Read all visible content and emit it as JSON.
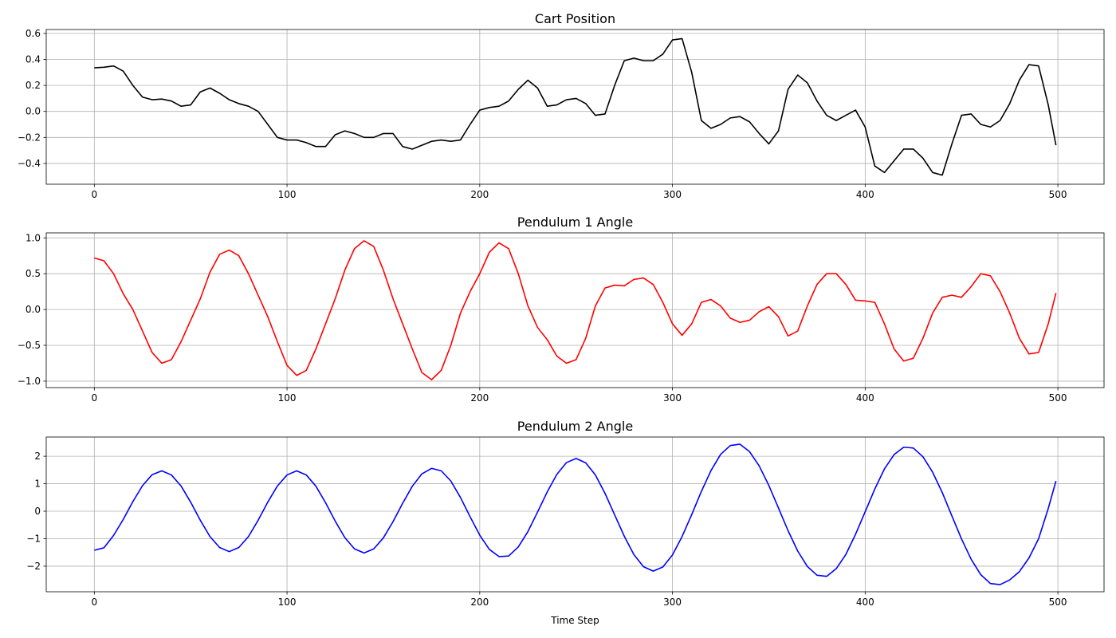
{
  "chart_data": [
    {
      "type": "line",
      "title": "Cart Position",
      "color": "#000000",
      "grid": true,
      "xlim": [
        -24.95,
        523.95
      ],
      "xticks": [
        0,
        100,
        200,
        300,
        400,
        500
      ],
      "ylim": [
        -0.56,
        0.63
      ],
      "yticks": [
        {
          "value": -0.4,
          "label": "−0.4"
        },
        {
          "value": -0.2,
          "label": "−0.2"
        },
        {
          "value": 0,
          "label": "0.0"
        },
        0.2,
        0.4,
        0.6
      ],
      "x": [
        0,
        5,
        10,
        15,
        20,
        25,
        30,
        35,
        40,
        45,
        50,
        55,
        60,
        65,
        70,
        75,
        80,
        85,
        90,
        95,
        100,
        105,
        110,
        115,
        120,
        125,
        130,
        135,
        140,
        145,
        150,
        155,
        160,
        165,
        170,
        175,
        180,
        185,
        190,
        195,
        200,
        205,
        210,
        215,
        220,
        225,
        230,
        235,
        240,
        245,
        250,
        255,
        260,
        265,
        270,
        275,
        280,
        285,
        290,
        295,
        300,
        305,
        310,
        315,
        320,
        325,
        330,
        335,
        340,
        345,
        350,
        355,
        360,
        365,
        370,
        375,
        380,
        385,
        390,
        395,
        400,
        405,
        410,
        415,
        420,
        425,
        430,
        435,
        440,
        445,
        450,
        455,
        460,
        465,
        470,
        475,
        480,
        485,
        490,
        495,
        499
      ],
      "y": [
        0.335,
        0.34,
        0.35,
        0.31,
        0.2,
        0.11,
        0.09,
        0.095,
        0.08,
        0.04,
        0.05,
        0.15,
        0.18,
        0.14,
        0.09,
        0.06,
        0.04,
        0,
        -0.1,
        -0.2,
        -0.22,
        -0.22,
        -0.24,
        -0.27,
        -0.27,
        -0.18,
        -0.15,
        -0.17,
        -0.2,
        -0.2,
        -0.17,
        -0.17,
        -0.27,
        -0.29,
        -0.26,
        -0.23,
        -0.22,
        -0.23,
        -0.22,
        -0.1,
        0.01,
        0.03,
        0.04,
        0.08,
        0.17,
        0.24,
        0.18,
        0.04,
        0.05,
        0.09,
        0.1,
        0.06,
        -0.03,
        -0.02,
        0.2,
        0.39,
        0.41,
        0.39,
        0.39,
        0.44,
        0.55,
        0.56,
        0.3,
        -0.07,
        -0.13,
        -0.1,
        -0.05,
        -0.04,
        -0.08,
        -0.17,
        -0.25,
        -0.15,
        0.17,
        0.28,
        0.22,
        0.08,
        -0.03,
        -0.07,
        -0.03,
        0.01,
        -0.12,
        -0.42,
        -0.47,
        -0.38,
        -0.29,
        -0.29,
        -0.36,
        -0.47,
        -0.49,
        -0.25,
        -0.03,
        -0.02,
        -0.1,
        -0.12,
        -0.07,
        0.06,
        0.24,
        0.36,
        0.35,
        0.05,
        -0.26
      ]
    },
    {
      "type": "line",
      "title": "Pendulum 1 Angle",
      "color": "#ff0000",
      "grid": true,
      "xlim": [
        -24.95,
        523.95
      ],
      "xticks": [
        0,
        100,
        200,
        300,
        400,
        500
      ],
      "ylim": [
        -1.09,
        1.07
      ],
      "yticks": [
        {
          "value": -1,
          "label": "−1.0"
        },
        {
          "value": -0.5,
          "label": "−0.5"
        },
        {
          "value": 0,
          "label": "0.0"
        },
        0.5,
        {
          "value": 1,
          "label": "1.0"
        }
      ],
      "x": [
        0,
        5,
        10,
        15,
        20,
        25,
        30,
        35,
        40,
        45,
        50,
        55,
        60,
        65,
        70,
        75,
        80,
        85,
        90,
        95,
        100,
        105,
        110,
        115,
        120,
        125,
        130,
        135,
        140,
        145,
        150,
        155,
        160,
        165,
        170,
        175,
        180,
        185,
        190,
        195,
        200,
        205,
        210,
        215,
        220,
        225,
        230,
        235,
        240,
        245,
        250,
        255,
        260,
        265,
        270,
        275,
        280,
        285,
        290,
        295,
        300,
        305,
        310,
        315,
        320,
        325,
        330,
        335,
        340,
        345,
        350,
        355,
        360,
        365,
        370,
        375,
        380,
        385,
        390,
        395,
        400,
        405,
        410,
        415,
        420,
        425,
        430,
        435,
        440,
        445,
        450,
        455,
        460,
        465,
        470,
        475,
        480,
        485,
        490,
        495,
        499
      ],
      "y": [
        0.72,
        0.68,
        0.5,
        0.22,
        0,
        -0.3,
        -0.6,
        -0.75,
        -0.7,
        -0.45,
        -0.15,
        0.15,
        0.52,
        0.77,
        0.83,
        0.75,
        0.5,
        0.2,
        -0.1,
        -0.45,
        -0.78,
        -0.92,
        -0.85,
        -0.55,
        -0.2,
        0.15,
        0.55,
        0.85,
        0.96,
        0.88,
        0.55,
        0.15,
        -0.2,
        -0.55,
        -0.88,
        -0.98,
        -0.85,
        -0.5,
        -0.05,
        0.25,
        0.5,
        0.8,
        0.93,
        0.85,
        0.5,
        0.05,
        -0.25,
        -0.42,
        -0.65,
        -0.75,
        -0.7,
        -0.4,
        0.05,
        0.3,
        0.34,
        0.33,
        0.42,
        0.44,
        0.35,
        0.1,
        -0.2,
        -0.36,
        -0.2,
        0.1,
        0.14,
        0.05,
        -0.12,
        -0.18,
        -0.15,
        -0.03,
        0.04,
        -0.1,
        -0.37,
        -0.3,
        0.05,
        0.35,
        0.5,
        0.5,
        0.35,
        0.13,
        0.12,
        0.1,
        -0.2,
        -0.55,
        -0.72,
        -0.68,
        -0.4,
        -0.05,
        0.17,
        0.2,
        0.17,
        0.32,
        0.5,
        0.47,
        0.25,
        -0.05,
        -0.4,
        -0.62,
        -0.6,
        -0.2,
        0.23
      ]
    },
    {
      "type": "line",
      "title": "Pendulum 2 Angle",
      "xlabel": "Time Step",
      "color": "#0000ff",
      "grid": true,
      "xlim": [
        -24.95,
        523.95
      ],
      "xticks": [
        0,
        100,
        200,
        300,
        400,
        500
      ],
      "ylim": [
        -2.93,
        2.7
      ],
      "yticks": [
        {
          "value": -2,
          "label": "−2"
        },
        {
          "value": -1,
          "label": "−1"
        },
        0,
        1,
        2
      ],
      "x": [
        0,
        5,
        10,
        15,
        20,
        25,
        30,
        35,
        40,
        45,
        50,
        55,
        60,
        65,
        70,
        75,
        80,
        85,
        90,
        95,
        100,
        105,
        110,
        115,
        120,
        125,
        130,
        135,
        140,
        145,
        150,
        155,
        160,
        165,
        170,
        175,
        180,
        185,
        190,
        195,
        200,
        205,
        210,
        215,
        220,
        225,
        230,
        235,
        240,
        245,
        250,
        255,
        260,
        265,
        270,
        275,
        280,
        285,
        290,
        295,
        300,
        305,
        310,
        315,
        320,
        325,
        330,
        335,
        340,
        345,
        350,
        355,
        360,
        365,
        370,
        375,
        380,
        385,
        390,
        395,
        400,
        405,
        410,
        415,
        420,
        425,
        430,
        435,
        440,
        445,
        450,
        455,
        460,
        465,
        470,
        475,
        480,
        485,
        490,
        495,
        499
      ],
      "y": [
        -1.42,
        -1.33,
        -0.88,
        -0.3,
        0.35,
        0.93,
        1.33,
        1.47,
        1.32,
        0.92,
        0.33,
        -0.33,
        -0.92,
        -1.32,
        -1.47,
        -1.32,
        -0.92,
        -0.33,
        0.33,
        0.92,
        1.32,
        1.47,
        1.32,
        0.91,
        0.31,
        -0.36,
        -0.96,
        -1.37,
        -1.52,
        -1.37,
        -0.97,
        -0.38,
        0.29,
        0.91,
        1.36,
        1.56,
        1.47,
        1.1,
        0.5,
        -0.2,
        -0.87,
        -1.39,
        -1.65,
        -1.63,
        -1.3,
        -0.74,
        -0.03,
        0.7,
        1.34,
        1.77,
        1.92,
        1.76,
        1.32,
        0.65,
        -0.13,
        -0.91,
        -1.58,
        -2.02,
        -2.18,
        -2.03,
        -1.59,
        -0.92,
        -0.12,
        0.72,
        1.48,
        2.07,
        2.39,
        2.44,
        2.17,
        1.65,
        0.94,
        0.12,
        -0.71,
        -1.45,
        -2.01,
        -2.33,
        -2.37,
        -2.09,
        -1.57,
        -0.84,
        -0.02,
        0.81,
        1.54,
        2.06,
        2.33,
        2.3,
        1.98,
        1.42,
        0.68,
        -0.17,
        -1.01,
        -1.75,
        -2.31,
        -2.63,
        -2.67,
        -2.5,
        -2.2,
        -1.7,
        -1.0,
        0.1,
        1.1
      ]
    }
  ]
}
